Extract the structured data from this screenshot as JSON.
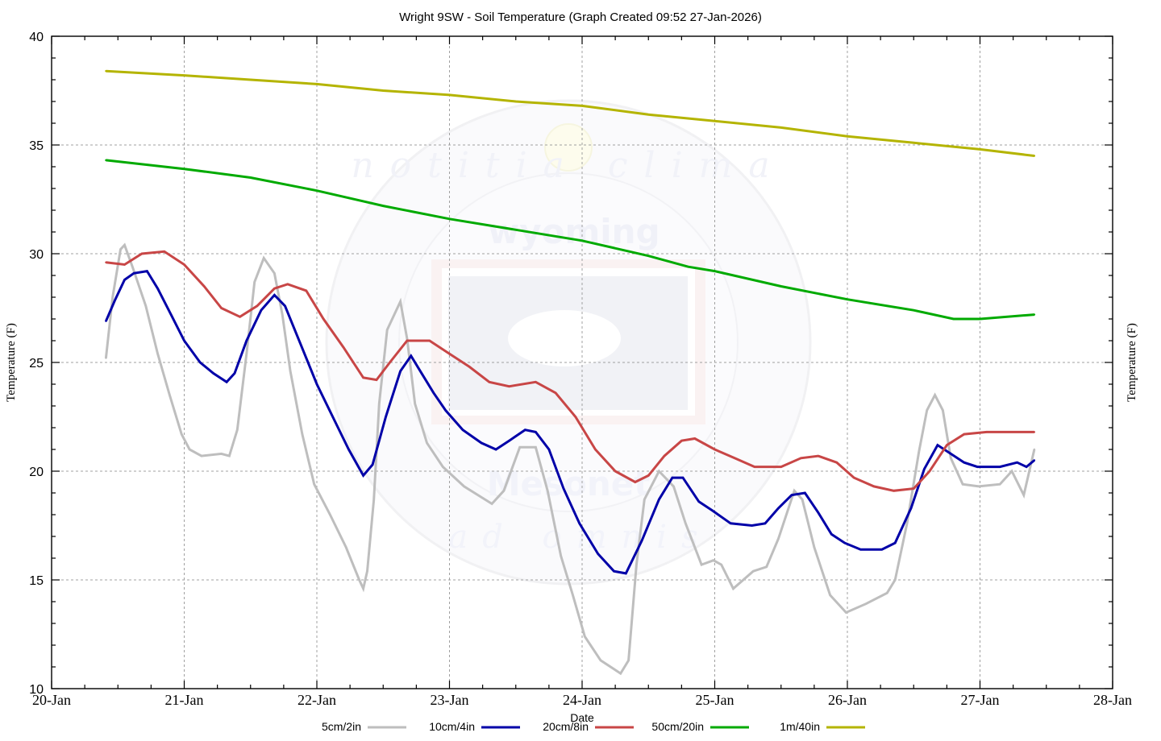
{
  "chart_data": {
    "type": "line",
    "title": "Wright 9SW - Soil Temperature (Graph Created 09:52 27-Jan-2026)",
    "xlabel": "Date",
    "ylabel": "Temperature (F)",
    "ylabel_right": "Temperature (F)",
    "xlim": [
      0,
      8
    ],
    "ylim": [
      10,
      40
    ],
    "x_units": "days since 20-Jan 00:00",
    "x_tick_labels": [
      "20-Jan",
      "21-Jan",
      "22-Jan",
      "23-Jan",
      "24-Jan",
      "25-Jan",
      "26-Jan",
      "27-Jan",
      "28-Jan"
    ],
    "y_ticks": [
      10,
      15,
      20,
      25,
      30,
      35,
      40
    ],
    "y_tick_labels": [
      "10",
      "15",
      "20",
      "25",
      "30",
      "35",
      "40"
    ],
    "grid": true,
    "legend_position": "bottom",
    "series": [
      {
        "name": "5cm/2in",
        "color": "#bebebe",
        "points": [
          [
            0.41,
            25.2
          ],
          [
            0.46,
            28.0
          ],
          [
            0.52,
            30.2
          ],
          [
            0.55,
            30.4
          ],
          [
            0.61,
            29.4
          ],
          [
            0.71,
            27.6
          ],
          [
            0.8,
            25.4
          ],
          [
            0.89,
            23.5
          ],
          [
            0.98,
            21.7
          ],
          [
            1.04,
            21.0
          ],
          [
            1.13,
            20.7
          ],
          [
            1.28,
            20.8
          ],
          [
            1.34,
            20.7
          ],
          [
            1.4,
            21.9
          ],
          [
            1.47,
            25.4
          ],
          [
            1.53,
            28.7
          ],
          [
            1.6,
            29.8
          ],
          [
            1.68,
            29.1
          ],
          [
            1.74,
            27.2
          ],
          [
            1.8,
            24.6
          ],
          [
            1.89,
            21.7
          ],
          [
            1.98,
            19.4
          ],
          [
            2.1,
            18.0
          ],
          [
            2.22,
            16.5
          ],
          [
            2.32,
            15.0
          ],
          [
            2.35,
            14.6
          ],
          [
            2.38,
            15.4
          ],
          [
            2.43,
            18.7
          ],
          [
            2.47,
            23.1
          ],
          [
            2.53,
            26.5
          ],
          [
            2.63,
            27.8
          ],
          [
            2.68,
            26.1
          ],
          [
            2.74,
            23.1
          ],
          [
            2.83,
            21.3
          ],
          [
            2.95,
            20.2
          ],
          [
            3.11,
            19.3
          ],
          [
            3.32,
            18.5
          ],
          [
            3.41,
            19.1
          ],
          [
            3.53,
            21.1
          ],
          [
            3.65,
            21.1
          ],
          [
            3.74,
            19.1
          ],
          [
            3.84,
            16.1
          ],
          [
            3.93,
            14.3
          ],
          [
            4.02,
            12.4
          ],
          [
            4.14,
            11.3
          ],
          [
            4.29,
            10.7
          ],
          [
            4.35,
            11.3
          ],
          [
            4.41,
            15.7
          ],
          [
            4.47,
            18.7
          ],
          [
            4.58,
            20.0
          ],
          [
            4.69,
            19.3
          ],
          [
            4.78,
            17.6
          ],
          [
            4.9,
            15.7
          ],
          [
            4.99,
            15.9
          ],
          [
            5.05,
            15.7
          ],
          [
            5.14,
            14.6
          ],
          [
            5.29,
            15.4
          ],
          [
            5.39,
            15.6
          ],
          [
            5.48,
            16.9
          ],
          [
            5.6,
            19.1
          ],
          [
            5.66,
            18.7
          ],
          [
            5.75,
            16.5
          ],
          [
            5.87,
            14.3
          ],
          [
            5.99,
            13.5
          ],
          [
            6.14,
            13.9
          ],
          [
            6.3,
            14.4
          ],
          [
            6.36,
            15.0
          ],
          [
            6.45,
            17.6
          ],
          [
            6.54,
            20.9
          ],
          [
            6.6,
            22.8
          ],
          [
            6.66,
            23.5
          ],
          [
            6.72,
            22.8
          ],
          [
            6.78,
            20.6
          ],
          [
            6.87,
            19.4
          ],
          [
            6.99,
            19.3
          ],
          [
            7.15,
            19.4
          ],
          [
            7.24,
            20.0
          ],
          [
            7.33,
            18.9
          ],
          [
            7.41,
            21.0
          ]
        ]
      },
      {
        "name": "10cm/4in",
        "color": "#0000a8",
        "points": [
          [
            0.41,
            26.9
          ],
          [
            0.48,
            27.9
          ],
          [
            0.55,
            28.8
          ],
          [
            0.62,
            29.1
          ],
          [
            0.72,
            29.2
          ],
          [
            0.8,
            28.4
          ],
          [
            0.9,
            27.2
          ],
          [
            1.0,
            26.0
          ],
          [
            1.12,
            25.0
          ],
          [
            1.22,
            24.5
          ],
          [
            1.32,
            24.1
          ],
          [
            1.38,
            24.5
          ],
          [
            1.47,
            26.0
          ],
          [
            1.58,
            27.4
          ],
          [
            1.68,
            28.1
          ],
          [
            1.76,
            27.6
          ],
          [
            1.88,
            25.8
          ],
          [
            2.0,
            24.0
          ],
          [
            2.12,
            22.5
          ],
          [
            2.24,
            21.0
          ],
          [
            2.35,
            19.8
          ],
          [
            2.42,
            20.3
          ],
          [
            2.52,
            22.5
          ],
          [
            2.63,
            24.6
          ],
          [
            2.71,
            25.3
          ],
          [
            2.78,
            24.6
          ],
          [
            2.88,
            23.6
          ],
          [
            2.97,
            22.8
          ],
          [
            3.1,
            21.9
          ],
          [
            3.24,
            21.3
          ],
          [
            3.35,
            21.0
          ],
          [
            3.45,
            21.4
          ],
          [
            3.57,
            21.9
          ],
          [
            3.65,
            21.8
          ],
          [
            3.75,
            21.0
          ],
          [
            3.86,
            19.2
          ],
          [
            3.98,
            17.6
          ],
          [
            4.12,
            16.2
          ],
          [
            4.24,
            15.4
          ],
          [
            4.33,
            15.3
          ],
          [
            4.45,
            16.8
          ],
          [
            4.58,
            18.7
          ],
          [
            4.68,
            19.7
          ],
          [
            4.76,
            19.7
          ],
          [
            4.88,
            18.6
          ],
          [
            4.98,
            18.2
          ],
          [
            5.12,
            17.6
          ],
          [
            5.28,
            17.5
          ],
          [
            5.38,
            17.6
          ],
          [
            5.48,
            18.3
          ],
          [
            5.58,
            18.9
          ],
          [
            5.68,
            19.0
          ],
          [
            5.78,
            18.1
          ],
          [
            5.88,
            17.1
          ],
          [
            5.98,
            16.7
          ],
          [
            6.1,
            16.4
          ],
          [
            6.26,
            16.4
          ],
          [
            6.36,
            16.7
          ],
          [
            6.48,
            18.3
          ],
          [
            6.58,
            20.1
          ],
          [
            6.68,
            21.2
          ],
          [
            6.78,
            20.8
          ],
          [
            6.88,
            20.4
          ],
          [
            6.98,
            20.2
          ],
          [
            7.15,
            20.2
          ],
          [
            7.28,
            20.4
          ],
          [
            7.35,
            20.2
          ],
          [
            7.41,
            20.5
          ]
        ]
      },
      {
        "name": "20cm/8in",
        "color": "#c84646",
        "points": [
          [
            0.41,
            29.6
          ],
          [
            0.55,
            29.5
          ],
          [
            0.68,
            30.0
          ],
          [
            0.85,
            30.1
          ],
          [
            1.0,
            29.5
          ],
          [
            1.15,
            28.5
          ],
          [
            1.28,
            27.5
          ],
          [
            1.42,
            27.1
          ],
          [
            1.55,
            27.6
          ],
          [
            1.68,
            28.4
          ],
          [
            1.78,
            28.6
          ],
          [
            1.92,
            28.3
          ],
          [
            2.05,
            27.0
          ],
          [
            2.2,
            25.7
          ],
          [
            2.35,
            24.3
          ],
          [
            2.45,
            24.2
          ],
          [
            2.55,
            25.0
          ],
          [
            2.68,
            26.0
          ],
          [
            2.85,
            26.0
          ],
          [
            3.0,
            25.4
          ],
          [
            3.15,
            24.8
          ],
          [
            3.3,
            24.1
          ],
          [
            3.45,
            23.9
          ],
          [
            3.65,
            24.1
          ],
          [
            3.8,
            23.6
          ],
          [
            3.95,
            22.5
          ],
          [
            4.1,
            21.0
          ],
          [
            4.25,
            20.0
          ],
          [
            4.4,
            19.5
          ],
          [
            4.5,
            19.8
          ],
          [
            4.62,
            20.7
          ],
          [
            4.75,
            21.4
          ],
          [
            4.85,
            21.5
          ],
          [
            5.0,
            21.0
          ],
          [
            5.15,
            20.6
          ],
          [
            5.3,
            20.2
          ],
          [
            5.5,
            20.2
          ],
          [
            5.65,
            20.6
          ],
          [
            5.78,
            20.7
          ],
          [
            5.92,
            20.4
          ],
          [
            6.05,
            19.7
          ],
          [
            6.2,
            19.3
          ],
          [
            6.35,
            19.1
          ],
          [
            6.5,
            19.2
          ],
          [
            6.62,
            20.0
          ],
          [
            6.75,
            21.2
          ],
          [
            6.88,
            21.7
          ],
          [
            7.05,
            21.8
          ],
          [
            7.41,
            21.8
          ]
        ]
      },
      {
        "name": "50cm/20in",
        "color": "#00aa00",
        "points": [
          [
            0.41,
            34.3
          ],
          [
            1.0,
            33.9
          ],
          [
            1.5,
            33.5
          ],
          [
            2.0,
            32.9
          ],
          [
            2.5,
            32.2
          ],
          [
            3.0,
            31.6
          ],
          [
            3.5,
            31.1
          ],
          [
            4.0,
            30.6
          ],
          [
            4.5,
            29.9
          ],
          [
            4.8,
            29.4
          ],
          [
            5.0,
            29.2
          ],
          [
            5.5,
            28.5
          ],
          [
            6.0,
            27.9
          ],
          [
            6.5,
            27.4
          ],
          [
            6.8,
            27.0
          ],
          [
            7.0,
            27.0
          ],
          [
            7.41,
            27.2
          ]
        ]
      },
      {
        "name": "1m/40in",
        "color": "#b4b400",
        "points": [
          [
            0.41,
            38.4
          ],
          [
            1.0,
            38.2
          ],
          [
            1.5,
            38.0
          ],
          [
            2.0,
            37.8
          ],
          [
            2.5,
            37.5
          ],
          [
            3.0,
            37.3
          ],
          [
            3.5,
            37.0
          ],
          [
            4.0,
            36.8
          ],
          [
            4.5,
            36.4
          ],
          [
            5.0,
            36.1
          ],
          [
            5.5,
            35.8
          ],
          [
            6.0,
            35.4
          ],
          [
            6.5,
            35.1
          ],
          [
            7.0,
            34.8
          ],
          [
            7.41,
            34.5
          ]
        ]
      }
    ]
  },
  "watermark": {
    "top_text": "notitia clima",
    "middle_text": "wyoming",
    "lower_text": "Mesonet",
    "bottom_text": "ad omnis"
  }
}
